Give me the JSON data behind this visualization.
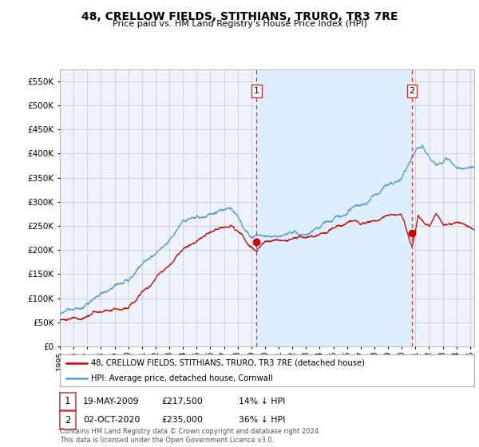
{
  "title": "48, CRELLOW FIELDS, STITHIANS, TRURO, TR3 7RE",
  "subtitle": "Price paid vs. HM Land Registry's House Price Index (HPI)",
  "legend_label_red": "48, CRELLOW FIELDS, STITHIANS, TRURO, TR3 7RE (detached house)",
  "legend_label_blue": "HPI: Average price, detached house, Cornwall",
  "transaction1_num": "1",
  "transaction1_date": "19-MAY-2009",
  "transaction1_price": "£217,500",
  "transaction1_hpi": "14% ↓ HPI",
  "transaction2_num": "2",
  "transaction2_date": "02-OCT-2020",
  "transaction2_price": "£235,000",
  "transaction2_hpi": "36% ↓ HPI",
  "footer": "Contains HM Land Registry data © Crown copyright and database right 2024.\nThis data is licensed under the Open Government Licence v3.0.",
  "ylim": [
    0,
    575000
  ],
  "yticks": [
    0,
    50000,
    100000,
    150000,
    200000,
    250000,
    300000,
    350000,
    400000,
    450000,
    500000,
    550000
  ],
  "ytick_labels": [
    "£0",
    "£50K",
    "£100K",
    "£150K",
    "£200K",
    "£250K",
    "£300K",
    "£350K",
    "£400K",
    "£450K",
    "£500K",
    "£550K"
  ],
  "red_color": "#cc0000",
  "blue_color": "#5599cc",
  "shade_color": "#ddeeff",
  "vline_color": "#cc3333",
  "background_color": "#ffffff",
  "plot_bg_color": "#eef3fb",
  "grid_color": "#cccccc",
  "transaction1_year": 2009.38,
  "transaction2_year": 2020.75,
  "xmin": 1995,
  "xmax": 2025.3
}
